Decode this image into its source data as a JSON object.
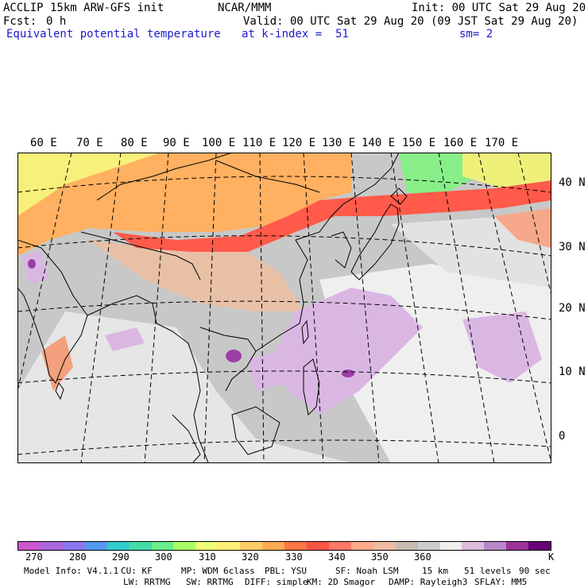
{
  "header": {
    "model": "ACCLIP 15km ARW-GFS init",
    "org": "NCAR/MMM",
    "init": "Init: 00 UTC Sat 29 Aug 20",
    "fcst_label": "Fcst:",
    "fcst_value": "0 h",
    "valid": "Valid: 00 UTC Sat 29 Aug 20 (09 JST Sat 29 Aug 20)",
    "field": "Equivalent potential temperature",
    "level": "at k-index =  51",
    "smoothing": "sm= 2"
  },
  "map": {
    "lon_labels": [
      "60 E",
      "70 E",
      "80 E",
      "90 E",
      "100 E",
      "110 E",
      "120 E",
      "130 E",
      "140 E",
      "150 E",
      "160 E",
      "170 E"
    ],
    "lat_labels": [
      "40 N",
      "30 N",
      "20 N",
      "10 N",
      "0"
    ]
  },
  "colorbar": {
    "colors": [
      "#cc55cc",
      "#aa66dd",
      "#8877ee",
      "#5599ee",
      "#33cccc",
      "#44ddaa",
      "#66ee88",
      "#aaff66",
      "#eeff77",
      "#ffee77",
      "#ffcc66",
      "#ffaa55",
      "#ff7744",
      "#ff5544",
      "#ff7766",
      "#ffaa88",
      "#eebba0",
      "#c8bcb0",
      "#cccccc",
      "#eeeeee",
      "#ddbbdd",
      "#bb88cc",
      "#993399",
      "#660077"
    ],
    "labels": [
      "270",
      "280",
      "290",
      "300",
      "310",
      "320",
      "330",
      "340",
      "350",
      "360"
    ],
    "unit": "K"
  },
  "footer": {
    "line1": [
      "Model Info: V4.1.1",
      "CU: KF",
      "MP: WDM 6class",
      "PBL: YSU",
      "SF: Noah LSM",
      "15 km",
      "51 levels",
      "90 sec"
    ],
    "line2": [
      "LW: RRTMG",
      "SW: RRTMG",
      "DIFF: simple",
      "KM: 2D Smagor",
      "DAMP: Rayleigh3",
      "SFLAY: MM5"
    ]
  }
}
